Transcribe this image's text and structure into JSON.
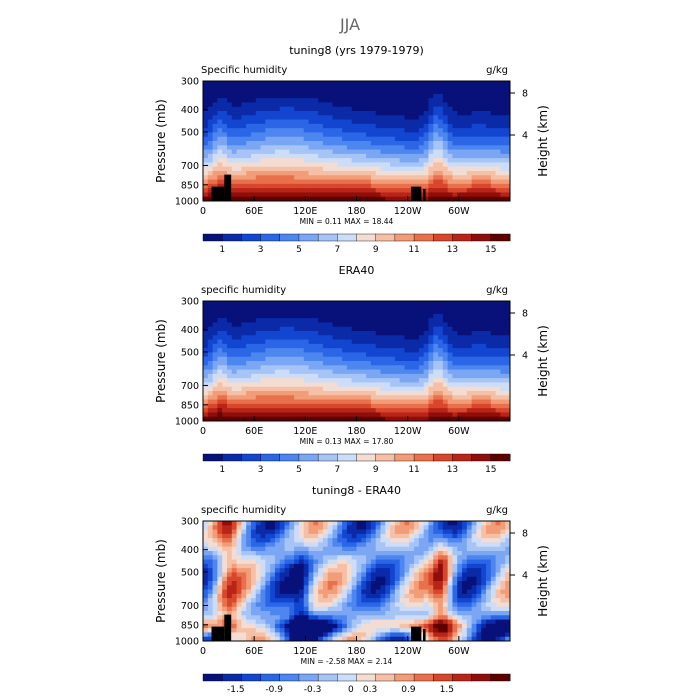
{
  "figure_title": "JJA",
  "chart_data": [
    {
      "type": "heatmap",
      "title": "tuning8 (yrs 1979-1979)",
      "left_label": "Specific humidity",
      "right_label": "g/kg",
      "ylabel": "Pressure (mb)",
      "ylabel_right": "Height (km)",
      "y_ticks": [
        "300",
        "400",
        "500",
        "700",
        "850",
        "1000"
      ],
      "y_right_ticks": [
        "8",
        "4"
      ],
      "x_ticks": [
        "0",
        "60E",
        "120E",
        "180",
        "120W",
        "60W"
      ],
      "min_max": "MIN =     0.11   MAX =    18.44",
      "colorbar_labels": [
        "1",
        "3",
        "5",
        "7",
        "9",
        "11",
        "13",
        "15"
      ],
      "colorbar_range": [
        0,
        16
      ],
      "field": "moist"
    },
    {
      "type": "heatmap",
      "title": "ERA40",
      "left_label": "specific humidity",
      "right_label": "g/kg",
      "ylabel": "Pressure (mb)",
      "ylabel_right": "Height (km)",
      "y_ticks": [
        "300",
        "400",
        "500",
        "700",
        "850",
        "1000"
      ],
      "y_right_ticks": [
        "8",
        "4"
      ],
      "x_ticks": [
        "0",
        "60E",
        "120E",
        "180",
        "120W",
        "60W"
      ],
      "min_max": "MIN =     0.13   MAX =    17.80",
      "colorbar_labels": [
        "1",
        "3",
        "5",
        "7",
        "9",
        "11",
        "13",
        "15"
      ],
      "colorbar_range": [
        0,
        16
      ],
      "field": "moist"
    },
    {
      "type": "heatmap",
      "title": "tuning8 - ERA40",
      "left_label": "specific humidity",
      "right_label": "g/kg",
      "ylabel": "Pressure (mb)",
      "ylabel_right": "Height (km)",
      "y_ticks": [
        "300",
        "400",
        "500",
        "700",
        "850",
        "1000"
      ],
      "y_right_ticks": [
        "8",
        "4"
      ],
      "x_ticks": [
        "0",
        "60E",
        "120E",
        "180",
        "120W",
        "60W"
      ],
      "min_max": "MIN =   -2.58   MAX =     2.14",
      "colorbar_labels": [
        "-1.5",
        "-0.9",
        "-0.3",
        "0",
        "0.3",
        "0.9",
        "1.5"
      ],
      "colorbar_range": [
        -1.8,
        1.8
      ],
      "field": "diff"
    }
  ],
  "colors": {
    "palette": [
      "#08107a",
      "#0b2aa8",
      "#1346d0",
      "#2a66e6",
      "#4d86ef",
      "#7aa6f3",
      "#a6c4f6",
      "#cddcf7",
      "#f3dcd2",
      "#f6c0a6",
      "#f29c78",
      "#e8704d",
      "#d8462b",
      "#b82518",
      "#8f0e0c",
      "#5e0000"
    ]
  }
}
